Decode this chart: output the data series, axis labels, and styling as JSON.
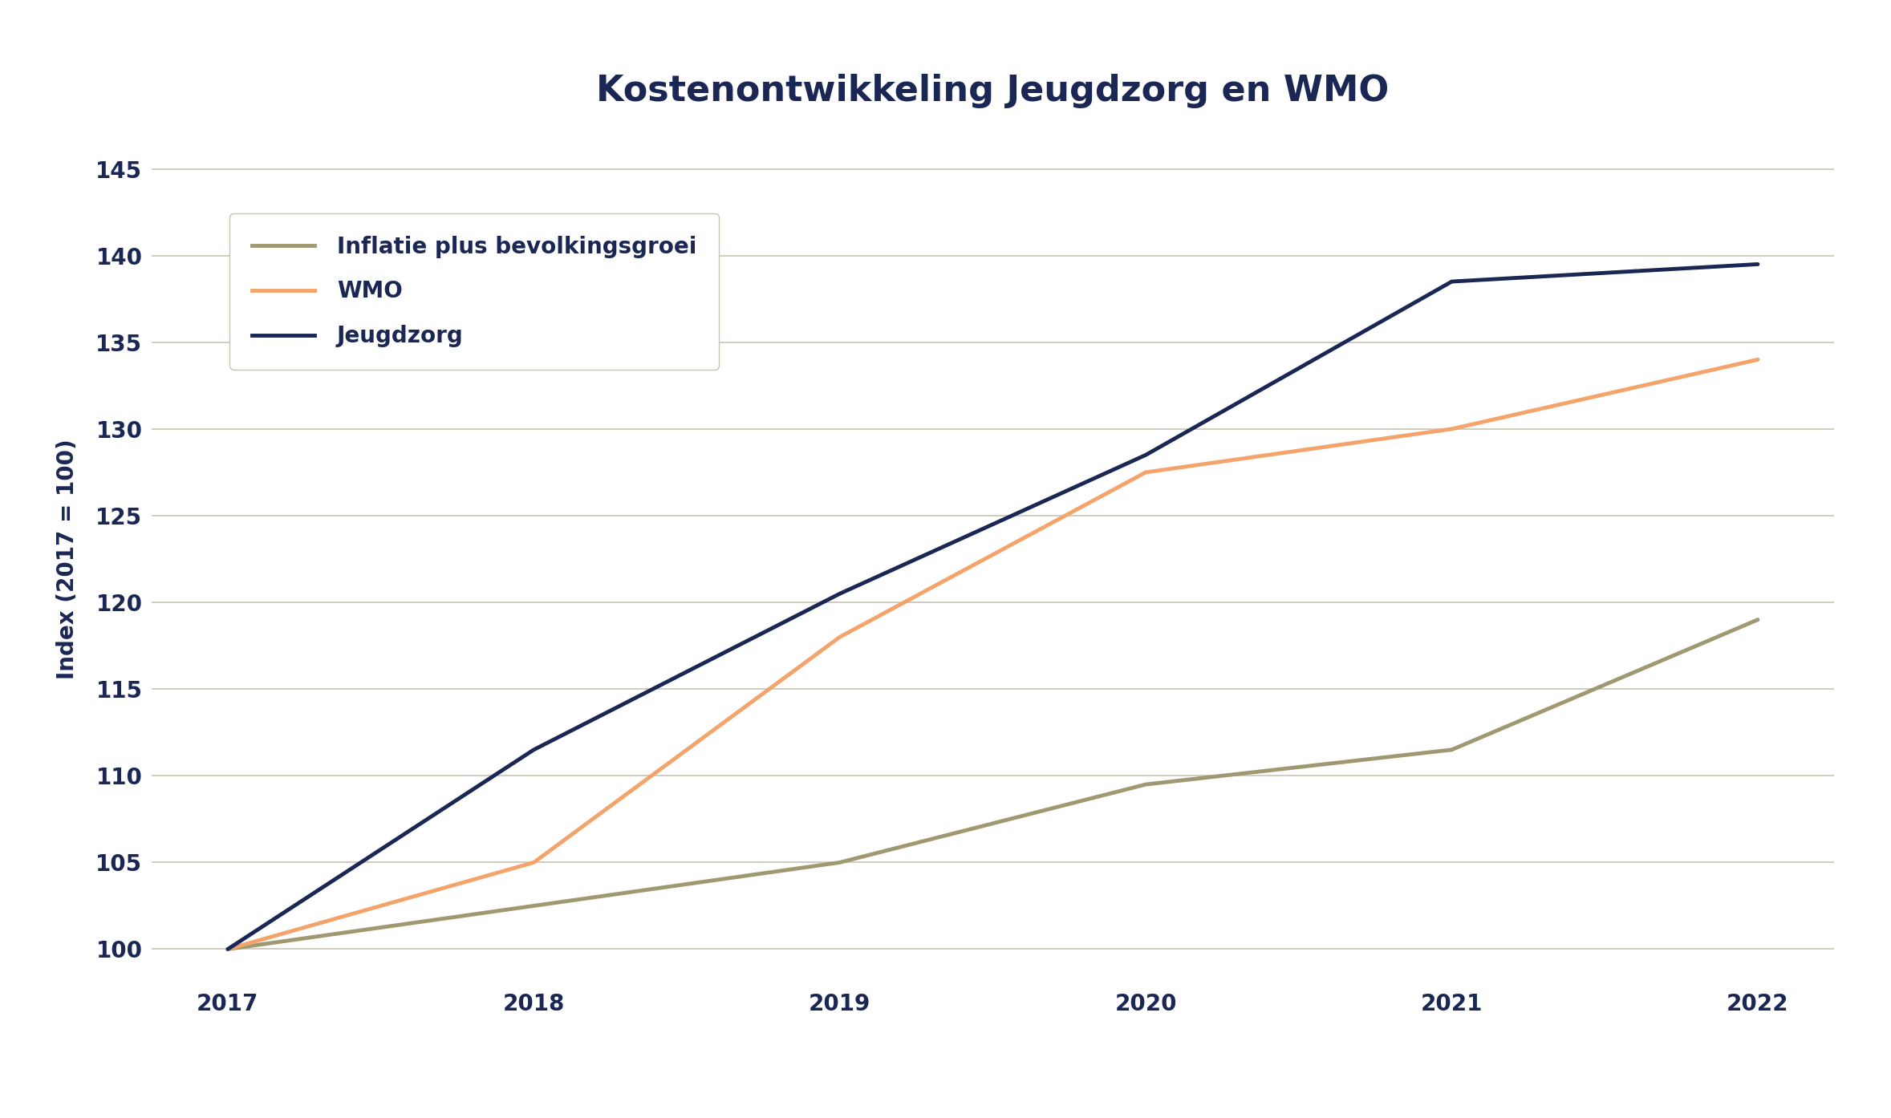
{
  "title": "Kostenontwikkeling Jeugdzorg en WMO",
  "ylabel": "Index (2017 = 100)",
  "years": [
    2017,
    2018,
    2019,
    2020,
    2021,
    2022
  ],
  "inflatie": [
    100,
    102.5,
    105.0,
    109.5,
    111.5,
    119.0
  ],
  "wmo": [
    100,
    105.0,
    118.0,
    127.5,
    130.0,
    134.0
  ],
  "jeugdzorg": [
    100,
    111.5,
    120.5,
    128.5,
    138.5,
    139.5
  ],
  "color_inflatie": "#a09870",
  "color_wmo": "#f4a46a",
  "color_jeugdzorg": "#1a2654",
  "background_color": "#ffffff",
  "grid_color": "#c8c5b5",
  "title_color": "#1a2654",
  "axis_label_color": "#1a2654",
  "tick_color": "#1a2654",
  "legend_label_inflatie": "Inflatie plus bevolkingsgroei",
  "legend_label_wmo": "WMO",
  "legend_label_jeugdzorg": "Jeugdzorg",
  "ylim": [
    98,
    147
  ],
  "yticks": [
    100,
    105,
    110,
    115,
    120,
    125,
    130,
    135,
    140,
    145
  ],
  "line_width": 3.5,
  "title_fontsize": 32,
  "axis_label_fontsize": 20,
  "tick_fontsize": 20,
  "legend_fontsize": 20
}
